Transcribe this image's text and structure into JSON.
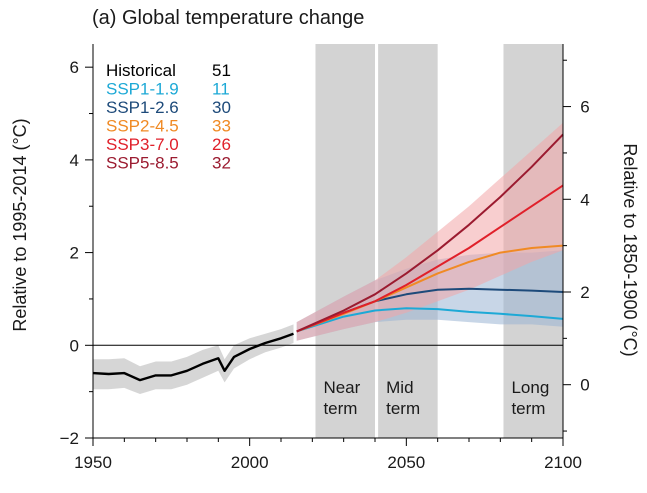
{
  "chart_data": {
    "type": "line",
    "title": "(a) Global temperature change",
    "ylabel": "Relative to 1995-2014 (°C)",
    "ylabel_right": "Relative to 1850-1900 (°C)",
    "xlim": [
      1950,
      2100
    ],
    "ylim": [
      -2,
      6.5
    ],
    "ylim_right": [
      -1.15,
      7.35
    ],
    "x_ticks": [
      1950,
      2000,
      2050,
      2100
    ],
    "y_ticks": [
      -2,
      0,
      2,
      4,
      6
    ],
    "y_ticks_right": [
      0,
      2,
      4,
      6
    ],
    "zero_line": 0,
    "periods": [
      {
        "label": [
          "Near",
          "term"
        ],
        "start": 2021,
        "end": 2040
      },
      {
        "label": [
          "Mid",
          "term"
        ],
        "start": 2041,
        "end": 2060
      },
      {
        "label": [
          "Long",
          "term"
        ],
        "start": 2081,
        "end": 2100
      }
    ],
    "series": [
      {
        "name": "Historical",
        "count": "51",
        "color": "#000000",
        "band_color": "#b4b4b4",
        "x": [
          1950,
          1955,
          1960,
          1965,
          1970,
          1975,
          1980,
          1985,
          1990,
          1992,
          1995,
          2000,
          2005,
          2010,
          2014
        ],
        "y": [
          -0.6,
          -0.62,
          -0.6,
          -0.75,
          -0.65,
          -0.65,
          -0.55,
          -0.4,
          -0.28,
          -0.55,
          -0.25,
          -0.08,
          0.05,
          0.15,
          0.25
        ],
        "lo": [
          -0.95,
          -0.95,
          -0.92,
          -1.05,
          -0.95,
          -0.95,
          -0.85,
          -0.7,
          -0.55,
          -0.8,
          -0.5,
          -0.3,
          -0.15,
          -0.05,
          0.05
        ],
        "hi": [
          -0.3,
          -0.3,
          -0.28,
          -0.45,
          -0.35,
          -0.35,
          -0.25,
          -0.1,
          0.0,
          -0.3,
          0.0,
          0.15,
          0.25,
          0.35,
          0.45
        ]
      },
      {
        "name": "SSP1-1.9",
        "count": "11",
        "color": "#1da9d6",
        "x": [
          2015,
          2030,
          2040,
          2050,
          2060,
          2070,
          2080,
          2090,
          2100
        ],
        "y": [
          0.3,
          0.62,
          0.75,
          0.8,
          0.78,
          0.72,
          0.68,
          0.63,
          0.57
        ]
      },
      {
        "name": "SSP1-2.6",
        "count": "30",
        "color": "#1d4a7a",
        "band_color": "#9ab4d4",
        "x": [
          2015,
          2030,
          2040,
          2050,
          2060,
          2070,
          2080,
          2090,
          2100
        ],
        "y": [
          0.3,
          0.7,
          0.95,
          1.1,
          1.2,
          1.22,
          1.2,
          1.18,
          1.15
        ],
        "lo": [
          0.1,
          0.35,
          0.5,
          0.55,
          0.55,
          0.5,
          0.45,
          0.45,
          0.4
        ],
        "hi": [
          0.5,
          1.05,
          1.4,
          1.65,
          1.85,
          1.95,
          2.0,
          2.0,
          2.05
        ]
      },
      {
        "name": "SSP2-4.5",
        "count": "33",
        "color": "#f08a24",
        "x": [
          2015,
          2030,
          2040,
          2050,
          2060,
          2070,
          2080,
          2090,
          2100
        ],
        "y": [
          0.3,
          0.68,
          0.95,
          1.25,
          1.55,
          1.8,
          2.0,
          2.1,
          2.15
        ]
      },
      {
        "name": "SSP3-7.0",
        "count": "26",
        "color": "#e0202a",
        "band_color": "#f3a5a8",
        "x": [
          2015,
          2030,
          2040,
          2050,
          2060,
          2070,
          2080,
          2090,
          2100
        ],
        "y": [
          0.3,
          0.7,
          0.95,
          1.3,
          1.7,
          2.1,
          2.55,
          3.0,
          3.45
        ],
        "lo": [
          0.1,
          0.35,
          0.5,
          0.7,
          0.95,
          1.2,
          1.5,
          1.8,
          2.05
        ],
        "hi": [
          0.5,
          1.05,
          1.4,
          1.9,
          2.45,
          3.0,
          3.6,
          4.2,
          4.8
        ]
      },
      {
        "name": "SSP5-8.5",
        "count": "32",
        "color": "#9b1b30",
        "x": [
          2015,
          2030,
          2040,
          2050,
          2060,
          2070,
          2080,
          2090,
          2100
        ],
        "y": [
          0.3,
          0.75,
          1.1,
          1.55,
          2.05,
          2.6,
          3.2,
          3.85,
          4.55
        ]
      }
    ]
  }
}
